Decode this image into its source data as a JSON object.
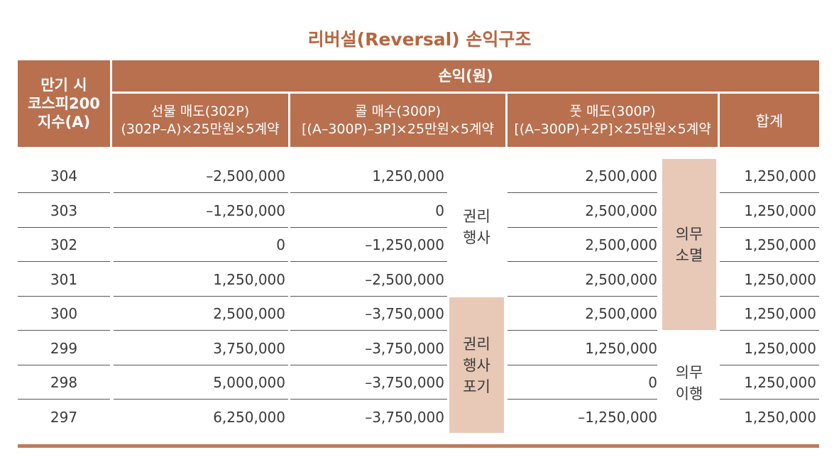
{
  "title": "리버설(Reversal) 손익구조",
  "header": {
    "col_a": [
      "만기 시",
      "코스피200",
      "지수(A)"
    ],
    "pnl_group": "손익(원)",
    "futures": {
      "name": "선물 매도(302P)",
      "formula": "(302P–A)×25만원×5계약"
    },
    "call": {
      "name": "콜 매수(300P)",
      "formula": "[(A–300P)–3P]×25만원×5계약"
    },
    "put": {
      "name": "풋 매도(300P)",
      "formula": "[(A–300P)+2P]×25만원×5계약"
    },
    "total": "합계"
  },
  "rows": [
    {
      "a": "304",
      "futures": "–2,500,000",
      "call": "1,250,000",
      "put": "2,500,000",
      "total": "1,250,000"
    },
    {
      "a": "303",
      "futures": "–1,250,000",
      "call": "0",
      "put": "2,500,000",
      "total": "1,250,000"
    },
    {
      "a": "302",
      "futures": "0",
      "call": "–1,250,000",
      "put": "2,500,000",
      "total": "1,250,000"
    },
    {
      "a": "301",
      "futures": "1,250,000",
      "call": "–2,500,000",
      "put": "2,500,000",
      "total": "1,250,000"
    },
    {
      "a": "300",
      "futures": "2,500,000",
      "call": "–3,750,000",
      "put": "2,500,000",
      "total": "1,250,000"
    },
    {
      "a": "299",
      "futures": "3,750,000",
      "call": "–3,750,000",
      "put": "1,250,000",
      "total": "1,250,000"
    },
    {
      "a": "298",
      "futures": "5,000,000",
      "call": "–3,750,000",
      "put": "0",
      "total": "1,250,000"
    },
    {
      "a": "297",
      "futures": "6,250,000",
      "call": "–3,750,000",
      "put": "–1,250,000",
      "total": "1,250,000"
    }
  ],
  "call_status": {
    "exercise": [
      "권리",
      "행사"
    ],
    "abandon": [
      "권리",
      "행사",
      "포기"
    ]
  },
  "put_status": {
    "extinguished": [
      "의무",
      "소멸"
    ],
    "performed": [
      "의무",
      "이행"
    ]
  },
  "colors": {
    "header_bg": "#b8704f",
    "title": "#b8653f",
    "shade": "#e8c8b6"
  }
}
